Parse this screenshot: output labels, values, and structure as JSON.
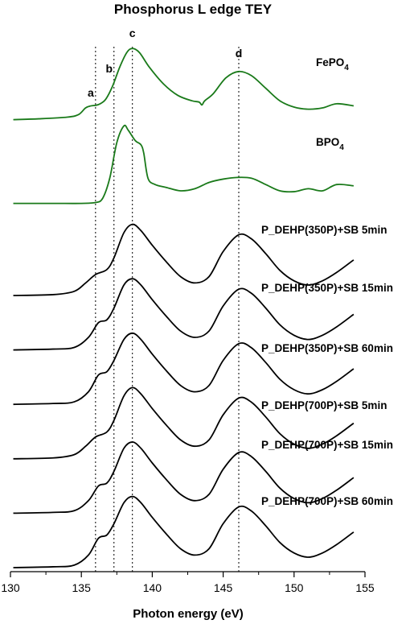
{
  "chart_data": {
    "type": "line",
    "title": "Phosphorus L edge TEY",
    "xlabel": "Photon energy (eV)",
    "ylabel": "",
    "xlim": [
      130,
      155
    ],
    "x_ticks": [
      130,
      135,
      140,
      145,
      150,
      155
    ],
    "y_axis_visible": false,
    "grid": false,
    "peak_markers": [
      {
        "label": "a",
        "x": 136.0
      },
      {
        "label": "b",
        "x": 137.3
      },
      {
        "label": "c",
        "x": 138.6
      },
      {
        "label": "d",
        "x": 146.1
      }
    ],
    "series": [
      {
        "name": "FePO4",
        "label_main": "FePO",
        "label_sub": "4",
        "color": "#1a7a1a",
        "offset": 10.7,
        "points": [
          [
            130.2,
            0
          ],
          [
            132,
            0.02
          ],
          [
            134,
            0.06
          ],
          [
            134.8,
            0.12
          ],
          [
            135.3,
            0.28
          ],
          [
            135.7,
            0.33
          ],
          [
            136.2,
            0.36
          ],
          [
            136.7,
            0.48
          ],
          [
            137.2,
            0.8
          ],
          [
            137.7,
            1.25
          ],
          [
            138.2,
            1.6
          ],
          [
            138.6,
            1.7
          ],
          [
            139.1,
            1.6
          ],
          [
            139.8,
            1.25
          ],
          [
            140.8,
            0.85
          ],
          [
            141.8,
            0.58
          ],
          [
            142.8,
            0.45
          ],
          [
            143.3,
            0.42
          ],
          [
            143.5,
            0.35
          ],
          [
            143.7,
            0.45
          ],
          [
            144.3,
            0.62
          ],
          [
            145.2,
            1.0
          ],
          [
            146.1,
            1.15
          ],
          [
            147,
            1.05
          ],
          [
            148,
            0.75
          ],
          [
            149,
            0.45
          ],
          [
            150,
            0.3
          ],
          [
            151,
            0.25
          ],
          [
            152,
            0.28
          ],
          [
            153,
            0.38
          ],
          [
            154.2,
            0.33
          ]
        ]
      },
      {
        "name": "BPO4",
        "label_main": "BPO",
        "label_sub": "4",
        "color": "#1a7a1a",
        "offset": 8.7,
        "points": [
          [
            130.2,
            0
          ],
          [
            133,
            0
          ],
          [
            135,
            0
          ],
          [
            136,
            0.02
          ],
          [
            136.5,
            0.12
          ],
          [
            137,
            0.6
          ],
          [
            137.5,
            1.45
          ],
          [
            138,
            1.85
          ],
          [
            138.3,
            1.75
          ],
          [
            138.8,
            1.5
          ],
          [
            139.2,
            1.4
          ],
          [
            139.4,
            1.2
          ],
          [
            139.7,
            0.6
          ],
          [
            140.2,
            0.45
          ],
          [
            141,
            0.38
          ],
          [
            142,
            0.3
          ],
          [
            143,
            0.35
          ],
          [
            144,
            0.5
          ],
          [
            145,
            0.58
          ],
          [
            146,
            0.62
          ],
          [
            147,
            0.6
          ],
          [
            148,
            0.45
          ],
          [
            149,
            0.3
          ],
          [
            150,
            0.28
          ],
          [
            151,
            0.35
          ],
          [
            152,
            0.3
          ],
          [
            153,
            0.45
          ],
          [
            154.2,
            0.42
          ]
        ]
      },
      {
        "name": "P_DEHP(350P)+SB 5min",
        "color": "#000000",
        "offset": 6.5,
        "points": [
          [
            130.2,
            0
          ],
          [
            133,
            0.02
          ],
          [
            134.5,
            0.1
          ],
          [
            135.3,
            0.3
          ],
          [
            136,
            0.5
          ],
          [
            136.8,
            0.62
          ],
          [
            137.3,
            0.9
          ],
          [
            138,
            1.5
          ],
          [
            138.6,
            1.7
          ],
          [
            139.2,
            1.55
          ],
          [
            140,
            1.2
          ],
          [
            141,
            0.8
          ],
          [
            142,
            0.45
          ],
          [
            143,
            0.3
          ],
          [
            144,
            0.45
          ],
          [
            145,
            1.05
          ],
          [
            146.1,
            1.45
          ],
          [
            147,
            1.35
          ],
          [
            148,
            1.0
          ],
          [
            149,
            0.6
          ],
          [
            150,
            0.35
          ],
          [
            151,
            0.25
          ],
          [
            152,
            0.35
          ],
          [
            153,
            0.55
          ],
          [
            154.2,
            0.85
          ]
        ]
      },
      {
        "name": "P_DEHP(350P)+SB 15min",
        "color": "#000000",
        "offset": 5.2,
        "points": [
          [
            130.2,
            0
          ],
          [
            133,
            0.02
          ],
          [
            134.5,
            0.06
          ],
          [
            135.5,
            0.3
          ],
          [
            136.2,
            0.65
          ],
          [
            136.8,
            0.72
          ],
          [
            137.3,
            1.0
          ],
          [
            138,
            1.55
          ],
          [
            138.6,
            1.7
          ],
          [
            139.2,
            1.55
          ],
          [
            140,
            1.2
          ],
          [
            141,
            0.8
          ],
          [
            142,
            0.45
          ],
          [
            143,
            0.3
          ],
          [
            144,
            0.45
          ],
          [
            145,
            1.05
          ],
          [
            146.1,
            1.45
          ],
          [
            147,
            1.35
          ],
          [
            148,
            1.0
          ],
          [
            149,
            0.6
          ],
          [
            150,
            0.35
          ],
          [
            151,
            0.25
          ],
          [
            152,
            0.35
          ],
          [
            153,
            0.55
          ],
          [
            154.2,
            0.85
          ]
        ]
      },
      {
        "name": "P_DEHP(350P)+SB 60min",
        "color": "#000000",
        "offset": 3.9,
        "points": [
          [
            130.2,
            0
          ],
          [
            133,
            0.02
          ],
          [
            134.5,
            0.06
          ],
          [
            135.5,
            0.3
          ],
          [
            136.2,
            0.7
          ],
          [
            136.8,
            0.78
          ],
          [
            137.3,
            1.05
          ],
          [
            138,
            1.55
          ],
          [
            138.6,
            1.7
          ],
          [
            139.2,
            1.55
          ],
          [
            140,
            1.2
          ],
          [
            141,
            0.8
          ],
          [
            142,
            0.45
          ],
          [
            143,
            0.3
          ],
          [
            144,
            0.45
          ],
          [
            145,
            1.05
          ],
          [
            146.1,
            1.45
          ],
          [
            147,
            1.35
          ],
          [
            148,
            1.0
          ],
          [
            149,
            0.6
          ],
          [
            150,
            0.35
          ],
          [
            151,
            0.25
          ],
          [
            152,
            0.35
          ],
          [
            153,
            0.55
          ],
          [
            154.2,
            0.85
          ]
        ]
      },
      {
        "name": "P_DEHP(700P)+SB 5min",
        "color": "#000000",
        "offset": 2.6,
        "points": [
          [
            130.2,
            0
          ],
          [
            133,
            0.02
          ],
          [
            134.5,
            0.1
          ],
          [
            135.3,
            0.3
          ],
          [
            136,
            0.52
          ],
          [
            136.8,
            0.64
          ],
          [
            137.3,
            0.92
          ],
          [
            138,
            1.5
          ],
          [
            138.6,
            1.7
          ],
          [
            139.2,
            1.55
          ],
          [
            140,
            1.2
          ],
          [
            141,
            0.8
          ],
          [
            142,
            0.45
          ],
          [
            143,
            0.3
          ],
          [
            144,
            0.45
          ],
          [
            145,
            1.05
          ],
          [
            146.1,
            1.45
          ],
          [
            147,
            1.35
          ],
          [
            148,
            1.0
          ],
          [
            149,
            0.6
          ],
          [
            150,
            0.35
          ],
          [
            151,
            0.25
          ],
          [
            152,
            0.35
          ],
          [
            153,
            0.55
          ],
          [
            154.2,
            0.85
          ]
        ]
      },
      {
        "name": "P_DEHP(700P)+SB 15min",
        "color": "#000000",
        "offset": 1.3,
        "points": [
          [
            130.2,
            0
          ],
          [
            133,
            0.02
          ],
          [
            134.5,
            0.06
          ],
          [
            135.5,
            0.3
          ],
          [
            136.2,
            0.65
          ],
          [
            136.8,
            0.72
          ],
          [
            137.3,
            1.0
          ],
          [
            138,
            1.55
          ],
          [
            138.6,
            1.7
          ],
          [
            139.2,
            1.55
          ],
          [
            140,
            1.2
          ],
          [
            141,
            0.8
          ],
          [
            142,
            0.45
          ],
          [
            143,
            0.3
          ],
          [
            144,
            0.45
          ],
          [
            145,
            1.05
          ],
          [
            146.1,
            1.45
          ],
          [
            147,
            1.35
          ],
          [
            148,
            1.0
          ],
          [
            149,
            0.6
          ],
          [
            150,
            0.35
          ],
          [
            151,
            0.25
          ],
          [
            152,
            0.35
          ],
          [
            153,
            0.55
          ],
          [
            154.2,
            0.85
          ]
        ]
      },
      {
        "name": "P_DEHP(700P)+SB 60min",
        "color": "#000000",
        "offset": 0.0,
        "points": [
          [
            130.2,
            0
          ],
          [
            133,
            0.02
          ],
          [
            134.5,
            0.06
          ],
          [
            135.5,
            0.3
          ],
          [
            136.2,
            0.7
          ],
          [
            136.8,
            0.78
          ],
          [
            137.3,
            1.05
          ],
          [
            138,
            1.55
          ],
          [
            138.6,
            1.7
          ],
          [
            139.2,
            1.55
          ],
          [
            140,
            1.2
          ],
          [
            141,
            0.8
          ],
          [
            142,
            0.45
          ],
          [
            143,
            0.3
          ],
          [
            144,
            0.45
          ],
          [
            145,
            1.05
          ],
          [
            146.1,
            1.45
          ],
          [
            147,
            1.35
          ],
          [
            148,
            1.0
          ],
          [
            149,
            0.6
          ],
          [
            150,
            0.35
          ],
          [
            151,
            0.25
          ],
          [
            152,
            0.35
          ],
          [
            153,
            0.55
          ],
          [
            154.2,
            0.85
          ]
        ]
      }
    ]
  }
}
